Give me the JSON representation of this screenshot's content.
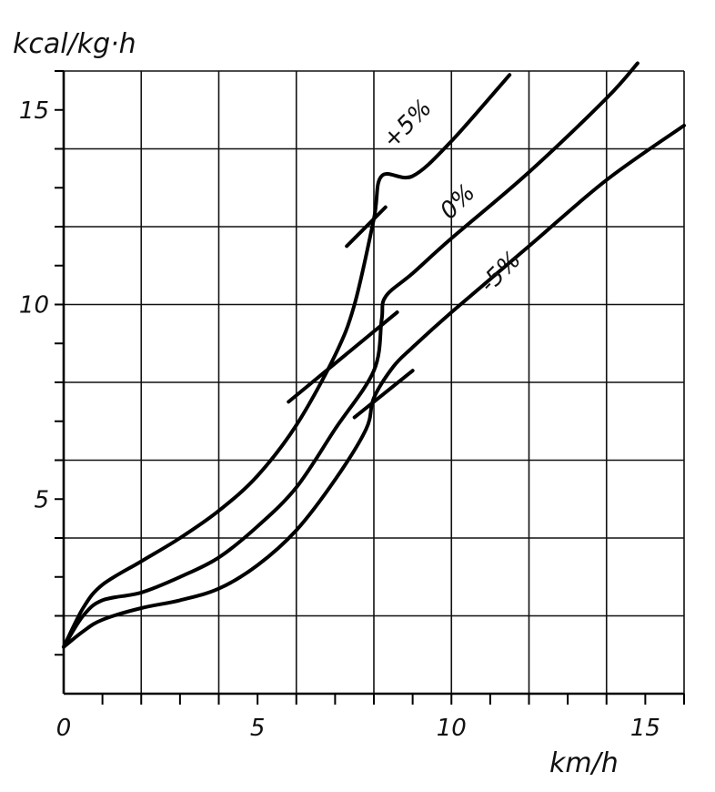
{
  "chart_data": {
    "type": "line",
    "title": "",
    "xlabel": "km/h",
    "ylabel": "kcal/kg·h",
    "xlim": [
      0,
      16
    ],
    "ylim": [
      0,
      16
    ],
    "grid": true,
    "x_ticks": [
      0,
      5,
      10,
      15
    ],
    "y_ticks": [
      5,
      10,
      15
    ],
    "x_tick_labels": [
      "0",
      "5",
      "10",
      "15"
    ],
    "y_tick_labels": [
      "5",
      "10",
      "15"
    ],
    "series": [
      {
        "name": "+5%",
        "kind": "grade",
        "points": [
          [
            0,
            1.2
          ],
          [
            0.5,
            2.2
          ],
          [
            1,
            2.8
          ],
          [
            2,
            3.4
          ],
          [
            3,
            4.0
          ],
          [
            4,
            4.7
          ],
          [
            5,
            5.6
          ],
          [
            6,
            6.9
          ],
          [
            7,
            8.7
          ],
          [
            7.5,
            10.0
          ],
          [
            8,
            12.2
          ],
          [
            8.2,
            13.3
          ],
          [
            9,
            13.3
          ],
          [
            10,
            14.2
          ],
          [
            11.5,
            15.9
          ]
        ]
      },
      {
        "name": "0%",
        "kind": "grade",
        "points": [
          [
            0,
            1.2
          ],
          [
            0.5,
            2.0
          ],
          [
            1,
            2.4
          ],
          [
            2,
            2.6
          ],
          [
            3,
            3.0
          ],
          [
            4,
            3.5
          ],
          [
            5,
            4.3
          ],
          [
            6,
            5.3
          ],
          [
            7,
            6.8
          ],
          [
            8,
            8.3
          ],
          [
            8.2,
            9.6
          ],
          [
            8.3,
            10.2
          ],
          [
            9,
            10.8
          ],
          [
            10,
            11.7
          ],
          [
            12,
            13.4
          ],
          [
            14,
            15.3
          ],
          [
            14.8,
            16.2
          ]
        ]
      },
      {
        "name": "-5%",
        "kind": "grade",
        "points": [
          [
            0,
            1.2
          ],
          [
            0.5,
            1.6
          ],
          [
            1,
            1.9
          ],
          [
            2,
            2.2
          ],
          [
            3,
            2.4
          ],
          [
            4,
            2.7
          ],
          [
            5,
            3.3
          ],
          [
            6,
            4.2
          ],
          [
            7,
            5.5
          ],
          [
            7.8,
            6.8
          ],
          [
            8,
            7.6
          ],
          [
            8.5,
            8.4
          ],
          [
            9,
            8.9
          ],
          [
            10,
            9.8
          ],
          [
            12,
            11.5
          ],
          [
            14,
            13.2
          ],
          [
            16,
            14.6
          ]
        ]
      }
    ],
    "transition_lines": [
      {
        "from": [
          7.3,
          11.5
        ],
        "to": [
          8.3,
          12.5
        ]
      },
      {
        "from": [
          5.8,
          7.5
        ],
        "to": [
          8.6,
          9.8
        ]
      },
      {
        "from": [
          7.5,
          7.1
        ],
        "to": [
          9.0,
          8.3
        ]
      }
    ]
  }
}
